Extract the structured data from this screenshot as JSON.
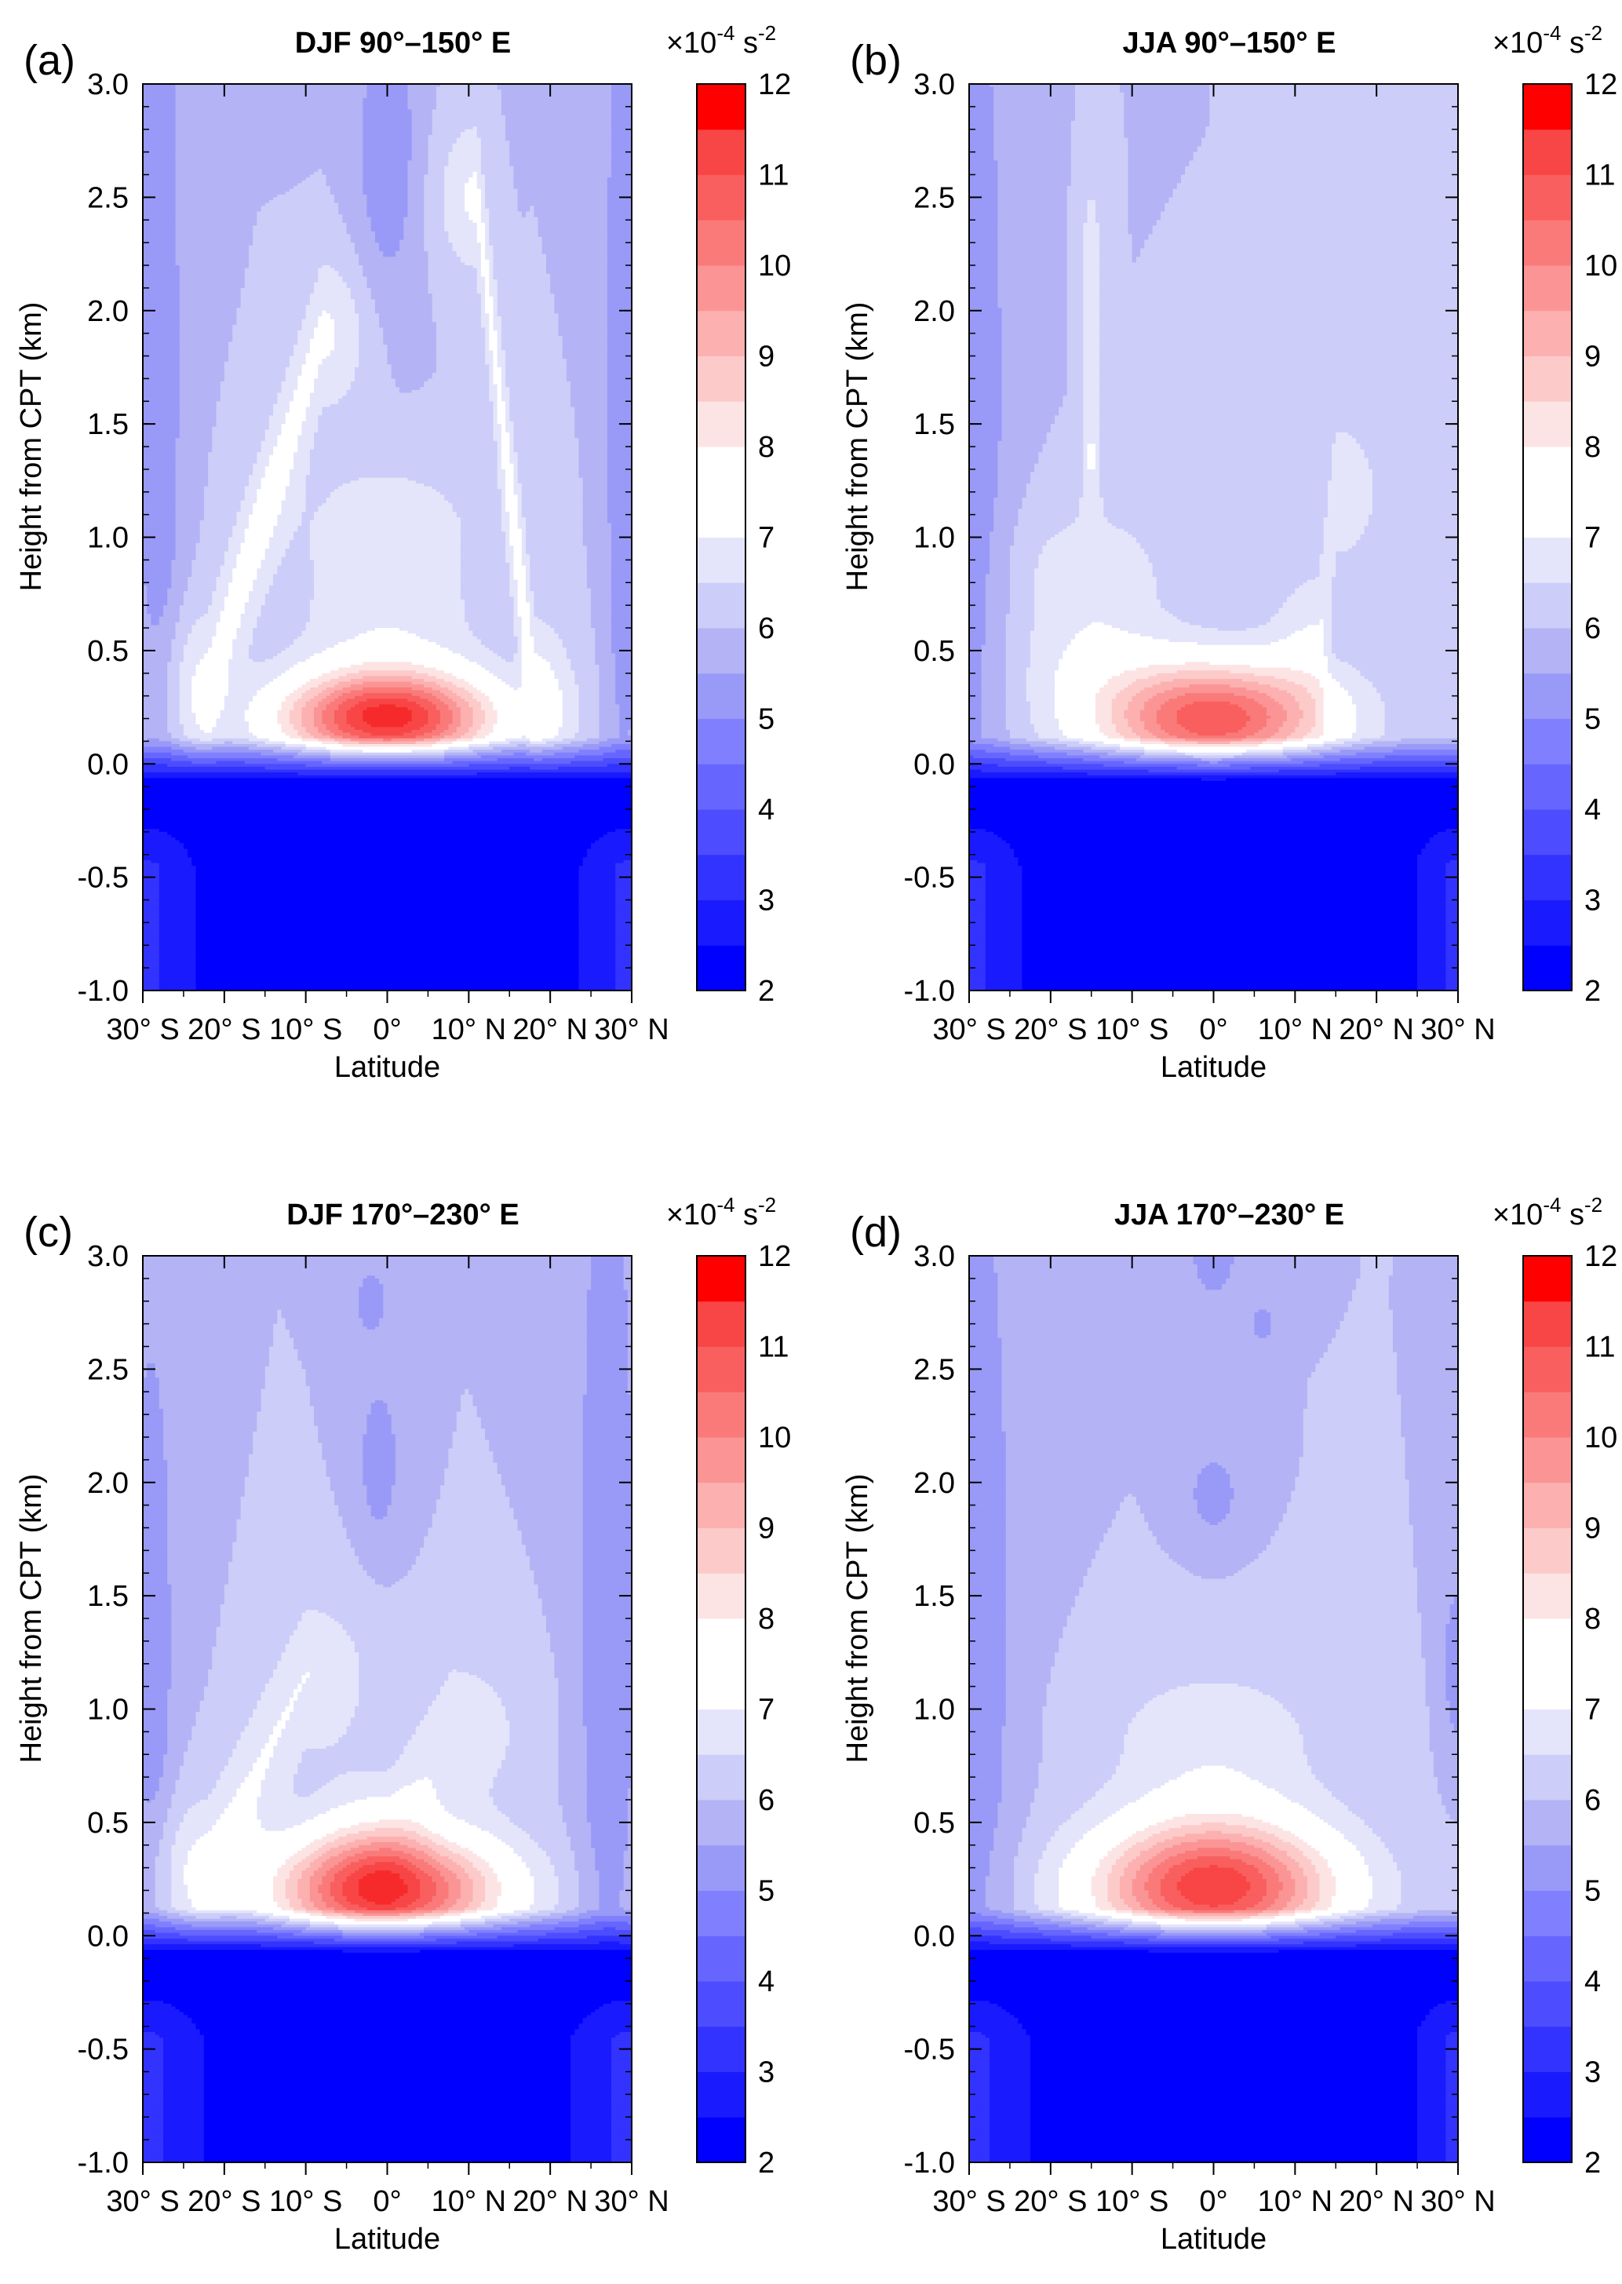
{
  "chart_data": [
    {
      "type": "contour",
      "panel_label": "(a)",
      "title": "DJF 90°–150° E",
      "xlabel": "Latitude",
      "ylabel": "Height from CPT (km)",
      "units": {
        "base": "×10",
        "exp": "-4",
        "tail": " s",
        "tail_exp": "-2"
      },
      "xlim": [
        -30,
        30
      ],
      "ylim": [
        -1.0,
        3.0
      ],
      "x_tick_values": [
        -30,
        -20,
        -10,
        0,
        10,
        20,
        30
      ],
      "x_tick_labels": [
        "30° S",
        "20° S",
        "10° S",
        "0°",
        "10° N",
        "20° N",
        "30° N"
      ],
      "y_tick_values": [
        -1.0,
        -0.5,
        0.0,
        0.5,
        1.0,
        1.5,
        2.0,
        2.5,
        3.0
      ],
      "y_tick_labels": [
        "-1.0",
        "-0.5",
        "0.0",
        "0.5",
        "1.0",
        "1.5",
        "2.0",
        "2.5",
        "3.0"
      ],
      "field": {
        "background_level": 6.0,
        "ridges": [
          {
            "x0": -22,
            "y0": 0.35,
            "x1": -8,
            "y1": 1.9,
            "w": 6,
            "amp": 1.1
          },
          {
            "x0": 18,
            "y0": 0.3,
            "x1": 11,
            "y1": 2.5,
            "w": 5,
            "amp": 1.1
          },
          {
            "x0": 0,
            "y0": 0.5,
            "x1": 0,
            "y1": 1.0,
            "w": 12,
            "amp": 0.9
          }
        ],
        "blobs": [
          {
            "x": -28,
            "y": 1.8,
            "sx": 3,
            "sy": 2.5,
            "amp": -0.9
          },
          {
            "x": 29,
            "y": 1.8,
            "sx": 2.5,
            "sy": 2.5,
            "amp": -0.9
          },
          {
            "x": 0,
            "y": 2.7,
            "sx": 4,
            "sy": 0.7,
            "amp": -0.9
          }
        ],
        "peak": {
          "x": 0,
          "y": 0.2,
          "sx": 13,
          "sy": 0.2,
          "amp": 5.4
        },
        "lower_edges": [
          {
            "x": -30,
            "w": 6,
            "amp": 0.9
          },
          {
            "x": 30,
            "w": 6,
            "amp": 0.9
          }
        ]
      }
    },
    {
      "type": "contour",
      "panel_label": "(b)",
      "title": "JJA 90°–150° E",
      "xlabel": "Latitude",
      "ylabel": "Height from CPT (km)",
      "units": {
        "base": "×10",
        "exp": "-4",
        "tail": " s",
        "tail_exp": "-2"
      },
      "xlim": [
        -30,
        30
      ],
      "ylim": [
        -1.0,
        3.0
      ],
      "x_tick_values": [
        -30,
        -20,
        -10,
        0,
        10,
        20,
        30
      ],
      "x_tick_labels": [
        "30° S",
        "20° S",
        "10° S",
        "0°",
        "10° N",
        "20° N",
        "30° N"
      ],
      "y_tick_values": [
        -1.0,
        -0.5,
        0.0,
        0.5,
        1.0,
        1.5,
        2.0,
        2.5,
        3.0
      ],
      "y_tick_labels": [
        "-1.0",
        "-0.5",
        "0.0",
        "0.5",
        "1.0",
        "1.5",
        "2.0",
        "2.5",
        "3.0"
      ],
      "field": {
        "background_level": 6.0,
        "ridges": [
          {
            "x0": -15,
            "y0": 0.55,
            "x1": -15,
            "y1": 0.8,
            "w": 10,
            "amp": 0.9
          },
          {
            "x0": 13,
            "y0": 0.55,
            "x1": 15,
            "y1": 1.2,
            "w": 6,
            "amp": 0.9
          },
          {
            "x0": -15,
            "y0": 1.4,
            "x1": -15,
            "y1": 2.2,
            "w": 1.2,
            "amp": 1.0
          }
        ],
        "blobs": [
          {
            "x": -30,
            "y": 1.6,
            "sx": 5,
            "sy": 2.6,
            "amp": -0.9
          }
        ],
        "peak": {
          "x": 0,
          "y": 0.2,
          "sx": 14,
          "sy": 0.25,
          "amp": 4.9
        },
        "lower_edges": [
          {
            "x": -30,
            "w": 6,
            "amp": 0.9
          },
          {
            "x": 30,
            "w": 5,
            "amp": 0.9
          }
        ]
      }
    },
    {
      "type": "contour",
      "panel_label": "(c)",
      "title": "DJF 170°–230° E",
      "xlabel": "Latitude",
      "ylabel": "Height from CPT (km)",
      "units": {
        "base": "×10",
        "exp": "-4",
        "tail": " s",
        "tail_exp": "-2"
      },
      "xlim": [
        -30,
        30
      ],
      "ylim": [
        -1.0,
        3.0
      ],
      "x_tick_values": [
        -30,
        -20,
        -10,
        0,
        10,
        20,
        30
      ],
      "x_tick_labels": [
        "30° S",
        "20° S",
        "10° S",
        "0°",
        "10° N",
        "20° N",
        "30° N"
      ],
      "y_tick_values": [
        -1.0,
        -0.5,
        0.0,
        0.5,
        1.0,
        1.5,
        2.0,
        2.5,
        3.0
      ],
      "y_tick_labels": [
        "-1.0",
        "-0.5",
        "0.0",
        "0.5",
        "1.0",
        "1.5",
        "2.0",
        "2.5",
        "3.0"
      ],
      "field": {
        "background_level": 6.0,
        "ridges": [
          {
            "x0": -22,
            "y0": 0.3,
            "x1": -10,
            "y1": 1.15,
            "w": 8,
            "amp": 1.0
          },
          {
            "x0": 0,
            "y0": 0.4,
            "x1": 8,
            "y1": 0.9,
            "w": 9,
            "amp": 0.9
          }
        ],
        "blobs": [
          {
            "x": -29,
            "y": 1.3,
            "sx": 3,
            "sy": 1.6,
            "amp": -0.9
          },
          {
            "x": 27,
            "y": 1.5,
            "sx": 4,
            "sy": 2.6,
            "amp": -0.9
          },
          {
            "x": -1,
            "y": 2.1,
            "sx": 2.5,
            "sy": 0.35,
            "amp": -0.9
          },
          {
            "x": -2,
            "y": 2.8,
            "sx": 2,
            "sy": 0.15,
            "amp": -0.9
          }
        ],
        "peak": {
          "x": 0,
          "y": 0.2,
          "sx": 14,
          "sy": 0.25,
          "amp": 5.3
        },
        "lower_edges": [
          {
            "x": -30,
            "w": 7,
            "amp": 0.9
          },
          {
            "x": 30,
            "w": 7,
            "amp": 0.9
          }
        ]
      }
    },
    {
      "type": "contour",
      "panel_label": "(d)",
      "title": "JJA 170°–230° E",
      "xlabel": "Latitude",
      "ylabel": "Height from CPT (km)",
      "units": {
        "base": "×10",
        "exp": "-4",
        "tail": " s",
        "tail_exp": "-2"
      },
      "xlim": [
        -30,
        30
      ],
      "ylim": [
        -1.0,
        3.0
      ],
      "x_tick_values": [
        -30,
        -20,
        -10,
        0,
        10,
        20,
        30
      ],
      "x_tick_labels": [
        "30° S",
        "20° S",
        "10° S",
        "0°",
        "10° N",
        "20° N",
        "30° N"
      ],
      "y_tick_values": [
        -1.0,
        -0.5,
        0.0,
        0.5,
        1.0,
        1.5,
        2.0,
        2.5,
        3.0
      ],
      "y_tick_labels": [
        "-1.0",
        "-0.5",
        "0.0",
        "0.5",
        "1.0",
        "1.5",
        "2.0",
        "2.5",
        "3.0"
      ],
      "field": {
        "background_level": 6.0,
        "ridges": [
          {
            "x0": 0,
            "y0": 0.45,
            "x1": 0,
            "y1": 0.85,
            "w": 14,
            "amp": 0.9
          }
        ],
        "blobs": [
          {
            "x": -30,
            "y": 1.4,
            "sx": 6,
            "sy": 2.8,
            "amp": -0.9
          },
          {
            "x": 30,
            "y": 1.2,
            "sx": 2,
            "sy": 0.4,
            "amp": -0.9
          },
          {
            "x": 0,
            "y": 3.0,
            "sx": 3,
            "sy": 0.2,
            "amp": -0.9
          },
          {
            "x": 6,
            "y": 2.7,
            "sx": 1.5,
            "sy": 0.08,
            "amp": -0.9
          },
          {
            "x": 0,
            "y": 1.95,
            "sx": 3,
            "sy": 0.18,
            "amp": -0.9
          }
        ],
        "peak": {
          "x": 0,
          "y": 0.2,
          "sx": 15,
          "sy": 0.28,
          "amp": 4.9
        },
        "lower_edges": [
          {
            "x": -30,
            "w": 7,
            "amp": 0.9
          },
          {
            "x": 30,
            "w": 5,
            "amp": 0.9
          }
        ]
      }
    }
  ],
  "colorbar": {
    "levels": [
      2,
      2.5,
      3,
      3.5,
      4,
      4.5,
      5,
      5.5,
      6,
      6.5,
      7,
      7.5,
      8,
      8.5,
      9,
      9.5,
      10,
      10.5,
      11,
      11.5,
      12
    ],
    "labels": [
      "2",
      "3",
      "4",
      "5",
      "6",
      "7",
      "8",
      "9",
      "10",
      "11",
      "12"
    ],
    "label_values": [
      2,
      3,
      4,
      5,
      6,
      7,
      8,
      9,
      10,
      11,
      12
    ],
    "colors": [
      "#0000ff",
      "#1a1aff",
      "#3333ff",
      "#4d4dff",
      "#6666ff",
      "#8080ff",
      "#9999f8",
      "#b3b3f5",
      "#cccdf8",
      "#e4e5fb",
      "#ffffff",
      "#ffffff",
      "#fde4e4",
      "#fdcaca",
      "#fcb0b0",
      "#fb9595",
      "#fa7a7a",
      "#f95f5f",
      "#f84545",
      "#f62a2a",
      "#ff0000"
    ]
  }
}
